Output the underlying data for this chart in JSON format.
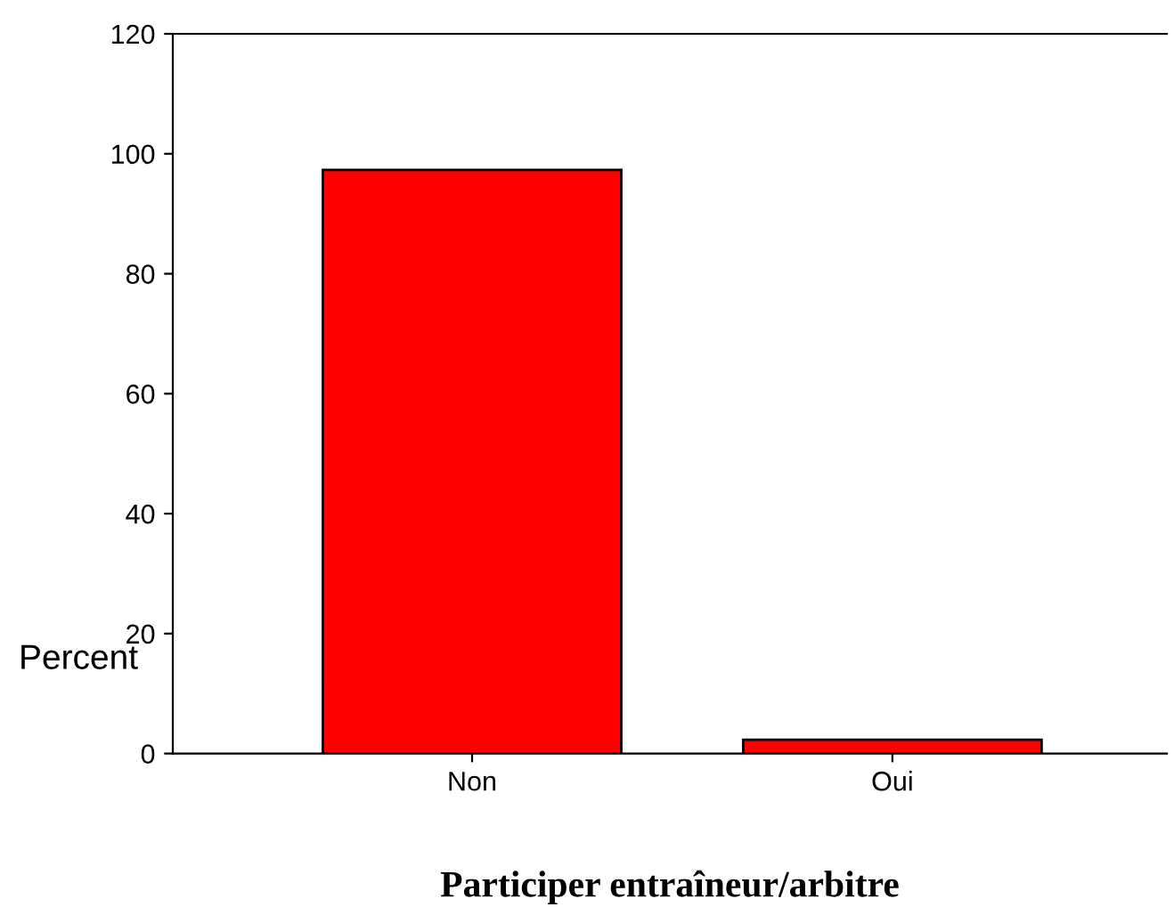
{
  "chart_data": {
    "type": "bar",
    "xlabel": "Participer entraîneur/arbitre",
    "ylabel": "Percent",
    "categories": [
      "Non",
      "Oui"
    ],
    "values": [
      97.3,
      2.3
    ],
    "color": "#ff0000",
    "ylim": [
      0,
      120
    ],
    "yticks": [
      0,
      20,
      40,
      60,
      80,
      100,
      120
    ],
    "grid": false,
    "legend": false
  }
}
